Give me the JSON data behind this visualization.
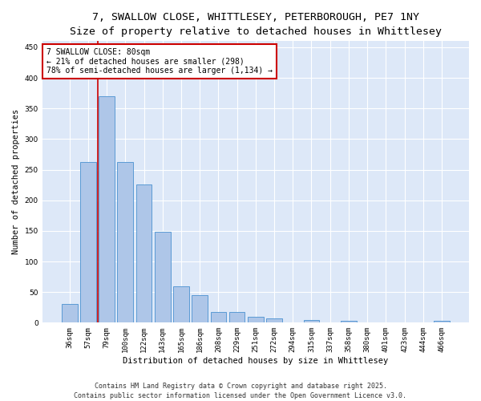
{
  "title_line1": "7, SWALLOW CLOSE, WHITTLESEY, PETERBOROUGH, PE7 1NY",
  "title_line2": "Size of property relative to detached houses in Whittlesey",
  "xlabel": "Distribution of detached houses by size in Whittlesey",
  "ylabel": "Number of detached properties",
  "categories": [
    "36sqm",
    "57sqm",
    "79sqm",
    "100sqm",
    "122sqm",
    "143sqm",
    "165sqm",
    "186sqm",
    "208sqm",
    "229sqm",
    "251sqm",
    "272sqm",
    "294sqm",
    "315sqm",
    "337sqm",
    "358sqm",
    "380sqm",
    "401sqm",
    "423sqm",
    "444sqm",
    "466sqm"
  ],
  "values": [
    30,
    262,
    370,
    262,
    226,
    148,
    60,
    45,
    18,
    18,
    10,
    7,
    0,
    5,
    0,
    3,
    0,
    0,
    0,
    0,
    3
  ],
  "bar_color": "#aec6e8",
  "bar_edge_color": "#5b9bd5",
  "background_color": "#dde8f8",
  "grid_color": "#ffffff",
  "vline_color": "#cc0000",
  "vline_bar_index": 2,
  "annotation_text": "7 SWALLOW CLOSE: 80sqm\n← 21% of detached houses are smaller (298)\n78% of semi-detached houses are larger (1,134) →",
  "annotation_box_edgecolor": "#cc0000",
  "ylim": [
    0,
    460
  ],
  "yticks": [
    0,
    50,
    100,
    150,
    200,
    250,
    300,
    350,
    400,
    450
  ],
  "footer_text": "Contains HM Land Registry data © Crown copyright and database right 2025.\nContains public sector information licensed under the Open Government Licence v3.0.",
  "title_fontsize": 9.5,
  "subtitle_fontsize": 8.5,
  "axis_label_fontsize": 7.5,
  "tick_fontsize": 6.5,
  "annotation_fontsize": 7,
  "footer_fontsize": 6
}
